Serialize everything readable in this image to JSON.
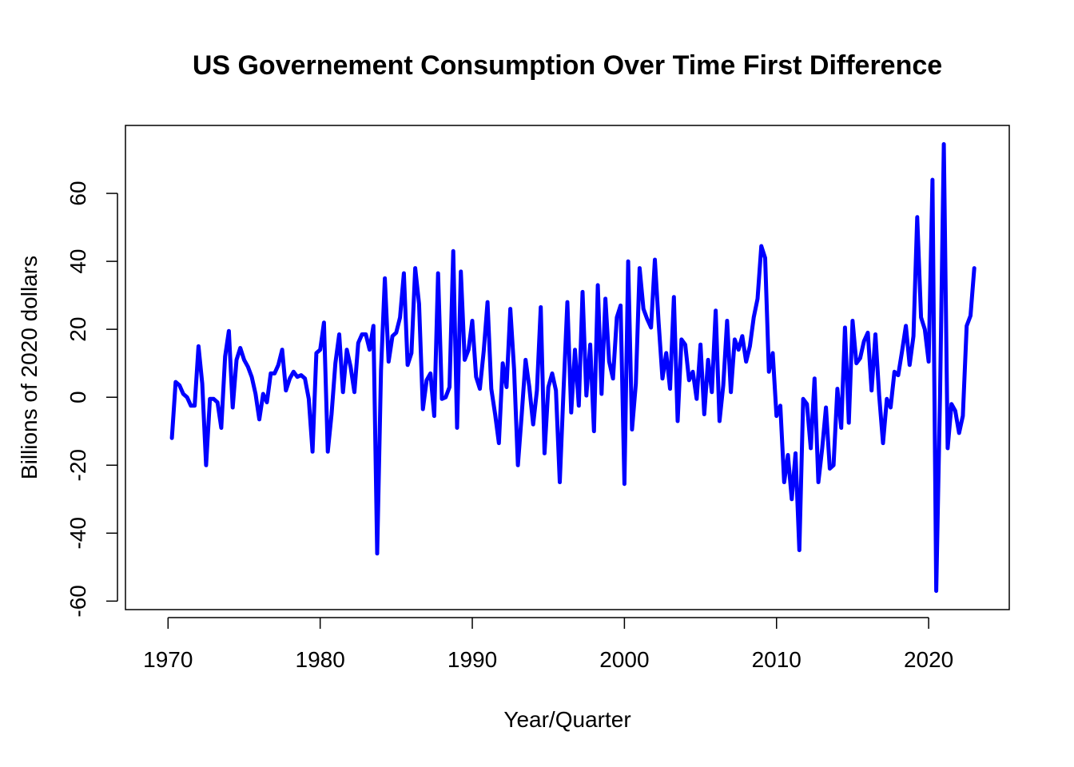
{
  "chart_data": {
    "type": "line",
    "title": "US Governement Consumption Over Time First Difference",
    "xlabel": "Year/Quarter",
    "ylabel": "Billions of 2020 dollars",
    "xlim": [
      1967.2,
      2025.3
    ],
    "ylim": [
      -62.5,
      80
    ],
    "x_ticks": [
      1970,
      1980,
      1990,
      2000,
      2010,
      2020
    ],
    "y_ticks": [
      -60,
      -40,
      -20,
      0,
      20,
      40,
      60
    ],
    "grid": false,
    "line_color": "#0000ff",
    "series": [
      {
        "x_start": 1970.25,
        "x_step": 0.25,
        "values": [
          -12,
          4.5,
          3.5,
          1,
          0,
          -2.5,
          -2.5,
          15,
          4,
          -20,
          -0.5,
          -0.5,
          -1.5,
          -9,
          12,
          19.5,
          -3,
          11,
          14.5,
          11,
          9,
          6,
          1,
          -6.5,
          1,
          -1.5,
          7,
          7,
          9.5,
          14,
          2,
          5.5,
          7.5,
          6,
          6.5,
          5.5,
          -0.5,
          -16,
          13,
          14,
          22,
          -16,
          -5,
          10,
          18.5,
          1.5,
          14,
          9,
          1.5,
          16,
          18.5,
          18.5,
          14,
          21,
          -46,
          8,
          35,
          10.5,
          18,
          19,
          23.5,
          36.5,
          9.5,
          13,
          38,
          27.5,
          -3.5,
          5,
          7,
          -5.5,
          36.5,
          -0.5,
          0,
          3,
          43,
          -9,
          37,
          11,
          14,
          22.5,
          6,
          2.5,
          13.5,
          28,
          2.5,
          -5,
          -13.5,
          10,
          3,
          26,
          8,
          -20,
          -5,
          11,
          3,
          -8,
          2,
          26.5,
          -16.5,
          3,
          7,
          2,
          -25,
          2,
          28,
          -4.5,
          14,
          -2.5,
          31,
          0.5,
          15.5,
          -10,
          33,
          1,
          29,
          10.5,
          5.5,
          23.5,
          27,
          -25.5,
          40,
          -9.5,
          4,
          38,
          26,
          23,
          20.5,
          40.5,
          22,
          5.5,
          13,
          2.5,
          29.5,
          -7,
          17,
          15.5,
          5,
          7.5,
          -0.5,
          15.5,
          -5,
          11,
          1.5,
          25.5,
          -7,
          3.5,
          22.5,
          1.5,
          17,
          14,
          18,
          10.5,
          15,
          23.5,
          29,
          44.5,
          41,
          7.5,
          13,
          -5.5,
          -2.5,
          -25,
          -17,
          -30,
          -16.5,
          -45,
          -0.5,
          -2,
          -15,
          5.5,
          -25,
          -15,
          -3,
          -21,
          -20,
          2.5,
          -9,
          20.5,
          -7.5,
          22.5,
          10,
          11.5,
          16.5,
          19,
          2,
          18.5,
          0.5,
          -13.5,
          -0.5,
          -3,
          7.5,
          6.5,
          13.5,
          21,
          9.5,
          18,
          53,
          23.5,
          20,
          10.5,
          64,
          -57,
          1,
          74.5,
          -15,
          -2,
          -4,
          -10.5,
          -5.5,
          21,
          24,
          38
        ]
      }
    ]
  }
}
